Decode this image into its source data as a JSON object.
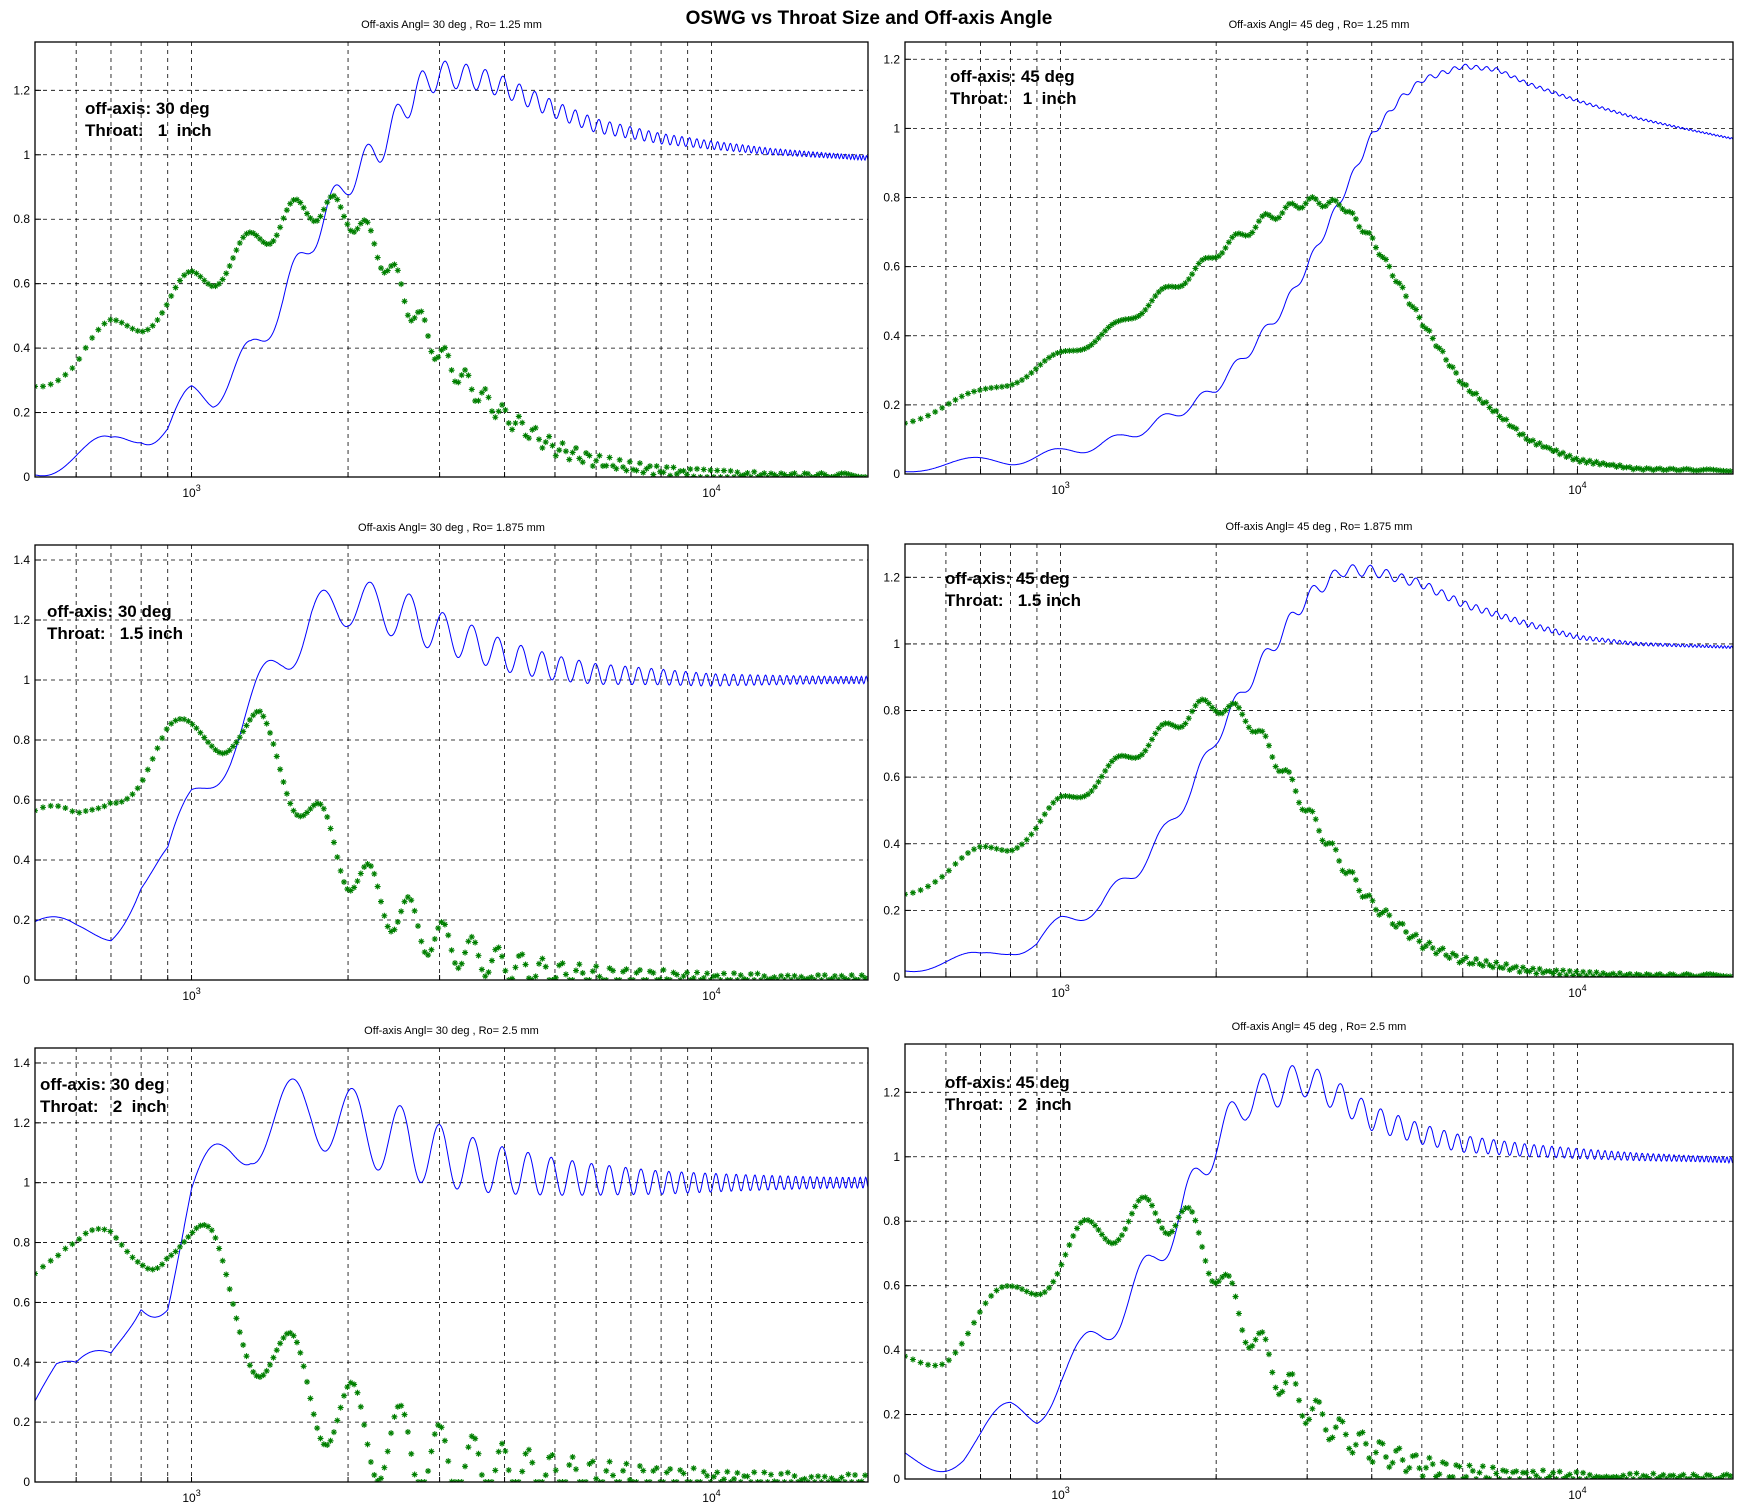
{
  "figure": {
    "title": "OSWG vs Throat Size and Off-axis Angle"
  },
  "colors": {
    "blue_series": "#0000ff",
    "green_series": "#007f00",
    "grid": "#000000"
  },
  "chart_data": [
    {
      "type": "line",
      "x_scale": "log",
      "grid": true,
      "title": "Off-axis Angl= 30 deg   , Ro= 1.25 mm",
      "annotation": [
        "off-axis: 30 deg",
        "Throat:   1  inch"
      ],
      "xlim": [
        500,
        20000
      ],
      "ylim": [
        0,
        1.35
      ],
      "yticks": [
        "0",
        "0.2",
        "0.4",
        "0.6",
        "0.8",
        "1",
        "1.2"
      ],
      "yticks_values": [
        0,
        0.2,
        0.4,
        0.6,
        0.8,
        1,
        1.2
      ],
      "xticks": [
        "10^3",
        "10^4"
      ],
      "series": [
        {
          "line_style": "solid",
          "marker": "none",
          "x": [
            500,
            700,
            800,
            900,
            1000,
            1100,
            1300,
            1500,
            1700,
            2000,
            2300,
            2700,
            3000,
            3500,
            4000,
            5000,
            6000,
            8000,
            10000,
            13000,
            16000,
            20000
          ],
          "values": [
            0.05,
            0.08,
            0.15,
            0.15,
            0.24,
            0.26,
            0.38,
            0.55,
            0.74,
            0.92,
            1.02,
            1.2,
            1.25,
            1.24,
            1.21,
            1.14,
            1.09,
            1.05,
            1.03,
            1.01,
            1.0,
            0.99
          ],
          "ripple_amplitude": 0.05,
          "ripple_period_hz": 300
        },
        {
          "line_style": "none",
          "marker": "*",
          "x": [
            500,
            600,
            700,
            800,
            900,
            1000,
            1100,
            1300,
            1500,
            1700,
            2000,
            2300,
            2700,
            3000,
            3500,
            4000,
            5000,
            6000,
            7000,
            8000,
            10000,
            13000,
            20000
          ],
          "values": [
            0.32,
            0.35,
            0.45,
            0.49,
            0.54,
            0.6,
            0.63,
            0.72,
            0.8,
            0.84,
            0.82,
            0.7,
            0.5,
            0.38,
            0.27,
            0.19,
            0.09,
            0.05,
            0.03,
            0.02,
            0.01,
            0.005,
            0.005
          ],
          "ripple_amplitude": 0.045,
          "ripple_period_hz": 300
        }
      ]
    },
    {
      "type": "line",
      "x_scale": "log",
      "grid": true,
      "title": "Off-axis Angl= 45 deg   , Ro= 1.25 mm",
      "annotation": [
        "off-axis: 45 deg",
        "Throat:   1  inch"
      ],
      "xlim": [
        500,
        20000
      ],
      "ylim": [
        0,
        1.25
      ],
      "yticks": [
        "0",
        "0.2",
        "0.4",
        "0.6",
        "0.8",
        "1",
        "1.2"
      ],
      "yticks_values": [
        0,
        0.2,
        0.4,
        0.6,
        0.8,
        1,
        1.2
      ],
      "xticks": [
        "10^3",
        "10^4"
      ],
      "series": [
        {
          "line_style": "solid",
          "marker": "none",
          "x": [
            500,
            800,
            1000,
            1300,
            1500,
            1800,
            2000,
            2300,
            2700,
            3000,
            3500,
            4000,
            4500,
            5000,
            6000,
            7000,
            8000,
            10000,
            13000,
            16000,
            20000
          ],
          "values": [
            0.02,
            0.04,
            0.06,
            0.1,
            0.14,
            0.2,
            0.25,
            0.35,
            0.48,
            0.6,
            0.8,
            0.98,
            1.08,
            1.14,
            1.18,
            1.17,
            1.13,
            1.08,
            1.03,
            1.0,
            0.97
          ],
          "ripple_amplitude": 0.015,
          "ripple_period_hz": 300
        },
        {
          "line_style": "none",
          "marker": "*",
          "x": [
            500,
            700,
            800,
            1000,
            1300,
            1500,
            1800,
            2000,
            2500,
            3000,
            3500,
            4000,
            5000,
            6000,
            8000,
            10000,
            13000,
            20000
          ],
          "values": [
            0.16,
            0.23,
            0.27,
            0.34,
            0.43,
            0.5,
            0.58,
            0.64,
            0.74,
            0.79,
            0.78,
            0.68,
            0.44,
            0.26,
            0.1,
            0.04,
            0.015,
            0.01
          ],
          "ripple_amplitude": 0.015,
          "ripple_period_hz": 300
        }
      ]
    },
    {
      "type": "line",
      "x_scale": "log",
      "grid": true,
      "title": "Off-axis Angl= 30 deg   , Ro= 1.875 mm",
      "annotation": [
        "off-axis: 30 deg",
        "Throat:   1.5 inch"
      ],
      "xlim": [
        500,
        20000
      ],
      "ylim": [
        0,
        1.45
      ],
      "yticks": [
        "0",
        "0.2",
        "0.4",
        "0.6",
        "0.8",
        "1",
        "1.2",
        "1.4"
      ],
      "yticks_values": [
        0,
        0.2,
        0.4,
        0.6,
        0.8,
        1,
        1.2,
        1.4
      ],
      "xticks": [
        "10^3",
        "10^4"
      ],
      "series": [
        {
          "line_style": "solid",
          "marker": "none",
          "x": [
            500,
            600,
            700,
            800,
            900,
            1000,
            1150,
            1300,
            1500,
            1700,
            2000,
            2300,
            2700,
            3000,
            3500,
            4000,
            5000,
            6000,
            8000,
            10000,
            13000,
            20000
          ],
          "values": [
            0.12,
            0.15,
            0.2,
            0.35,
            0.38,
            0.58,
            0.75,
            0.9,
            1.08,
            1.2,
            1.26,
            1.24,
            1.2,
            1.16,
            1.12,
            1.08,
            1.04,
            1.02,
            1.01,
            1.0,
            1.0,
            1.0
          ],
          "ripple_amplitude": 0.08,
          "ripple_period_hz": 420
        },
        {
          "line_style": "none",
          "marker": "*",
          "x": [
            500,
            600,
            700,
            800,
            900,
            1000,
            1100,
            1200,
            1350,
            1500,
            1700,
            2000,
            2300,
            2700,
            3000,
            3500,
            4000,
            5000,
            6000,
            8000,
            10000,
            20000
          ],
          "values": [
            0.49,
            0.52,
            0.66,
            0.7,
            0.78,
            0.8,
            0.83,
            0.84,
            0.82,
            0.7,
            0.55,
            0.38,
            0.27,
            0.18,
            0.13,
            0.08,
            0.05,
            0.02,
            0.012,
            0.008,
            0.005,
            0.005
          ],
          "ripple_amplitude": 0.08,
          "ripple_period_hz": 420
        }
      ]
    },
    {
      "type": "line",
      "x_scale": "log",
      "grid": true,
      "title": "Off-axis Angl= 45 deg   , Ro= 1.875 mm",
      "annotation": [
        "off-axis: 45 deg",
        "Throat:   1.5 inch"
      ],
      "xlim": [
        500,
        20000
      ],
      "ylim": [
        0,
        1.3
      ],
      "yticks": [
        "0",
        "0.2",
        "0.4",
        "0.6",
        "0.8",
        "1",
        "1.2"
      ],
      "yticks_values": [
        0,
        0.2,
        0.4,
        0.6,
        0.8,
        1,
        1.2
      ],
      "xticks": [
        "10^3",
        "10^4"
      ],
      "series": [
        {
          "line_style": "solid",
          "marker": "none",
          "x": [
            500,
            700,
            800,
            900,
            1000,
            1200,
            1400,
            1600,
            1800,
            2000,
            2300,
            2700,
            3000,
            3500,
            4000,
            5000,
            6000,
            8000,
            10000,
            13000,
            20000
          ],
          "values": [
            0.04,
            0.05,
            0.09,
            0.1,
            0.16,
            0.22,
            0.32,
            0.44,
            0.57,
            0.72,
            0.88,
            1.04,
            1.14,
            1.22,
            1.22,
            1.18,
            1.12,
            1.06,
            1.02,
            1.0,
            0.99
          ],
          "ripple_amplitude": 0.025,
          "ripple_period_hz": 300
        },
        {
          "line_style": "none",
          "marker": "*",
          "x": [
            500,
            600,
            700,
            800,
            900,
            1000,
            1200,
            1400,
            1600,
            1800,
            2000,
            2300,
            2700,
            3000,
            3500,
            4000,
            5000,
            6000,
            8000,
            10000,
            13000,
            20000
          ],
          "values": [
            0.27,
            0.31,
            0.37,
            0.4,
            0.45,
            0.52,
            0.6,
            0.68,
            0.74,
            0.8,
            0.82,
            0.78,
            0.62,
            0.5,
            0.34,
            0.22,
            0.1,
            0.05,
            0.02,
            0.01,
            0.005,
            0.005
          ],
          "ripple_amplitude": 0.025,
          "ripple_period_hz": 300
        }
      ]
    },
    {
      "type": "line",
      "x_scale": "log",
      "grid": true,
      "title": "Off-axis Angl= 30 deg   , Ro= 2.5 mm",
      "annotation": [
        "off-axis: 30 deg",
        "Throat:   2  inch"
      ],
      "xlim": [
        500,
        20000
      ],
      "ylim": [
        0,
        1.45
      ],
      "yticks": [
        "0",
        "0.2",
        "0.4",
        "0.6",
        "0.8",
        "1",
        "1.2",
        "1.4"
      ],
      "yticks_values": [
        0,
        0.2,
        0.4,
        0.6,
        0.8,
        1,
        1.2,
        1.4
      ],
      "xticks": [
        "10^3",
        "10^4"
      ],
      "series": [
        {
          "line_style": "solid",
          "marker": "none",
          "x": [
            500,
            550,
            600,
            700,
            800,
            900,
            1000,
            1150,
            1300,
            1500,
            1700,
            2000,
            2300,
            2700,
            3000,
            3500,
            4000,
            5000,
            6000,
            8000,
            10000,
            20000
          ],
          "values": [
            0.24,
            0.3,
            0.28,
            0.4,
            0.68,
            0.66,
            0.92,
            1.05,
            1.18,
            1.22,
            1.24,
            1.2,
            1.16,
            1.12,
            1.09,
            1.06,
            1.04,
            1.02,
            1.01,
            1.0,
            1.0,
            1.0
          ],
          "ripple_amplitude": 0.12,
          "ripple_period_hz": 480
        },
        {
          "line_style": "none",
          "marker": "*",
          "x": [
            500,
            550,
            600,
            700,
            800,
            900,
            1000,
            1100,
            1200,
            1350,
            1500,
            1700,
            2000,
            2300,
            2700,
            3000,
            3500,
            4000,
            5000,
            6000,
            8000,
            10000,
            20000
          ],
          "values": [
            0.66,
            0.64,
            0.66,
            0.8,
            0.85,
            0.85,
            0.76,
            0.7,
            0.6,
            0.48,
            0.38,
            0.3,
            0.2,
            0.14,
            0.1,
            0.07,
            0.05,
            0.035,
            0.02,
            0.012,
            0.008,
            0.006,
            0.006
          ],
          "ripple_amplitude": 0.14,
          "ripple_period_hz": 480
        }
      ]
    },
    {
      "type": "line",
      "x_scale": "log",
      "grid": true,
      "title": "Off-axis Angl= 45 deg   , Ro= 2.5 mm",
      "annotation": [
        "off-axis: 45 deg",
        "Throat:   2  inch"
      ],
      "xlim": [
        500,
        20000
      ],
      "ylim": [
        0,
        1.35
      ],
      "yticks": [
        "0",
        "0.2",
        "0.4",
        "0.6",
        "0.8",
        "1",
        "1.2"
      ],
      "yticks_values": [
        0,
        0.2,
        0.4,
        0.6,
        0.8,
        1,
        1.2
      ],
      "xticks": [
        "10^3",
        "10^4"
      ],
      "series": [
        {
          "line_style": "solid",
          "marker": "none",
          "x": [
            500,
            650,
            700,
            800,
            900,
            1000,
            1100,
            1300,
            1500,
            1700,
            2000,
            2300,
            2700,
            3000,
            3500,
            4000,
            5000,
            6000,
            8000,
            10000,
            13000,
            20000
          ],
          "values": [
            0.07,
            0.09,
            0.12,
            0.19,
            0.22,
            0.32,
            0.38,
            0.52,
            0.66,
            0.82,
            1.05,
            1.18,
            1.22,
            1.24,
            1.18,
            1.12,
            1.07,
            1.04,
            1.02,
            1.01,
            1.0,
            0.99
          ],
          "ripple_amplitude": 0.06,
          "ripple_period_hz": 340
        },
        {
          "line_style": "none",
          "marker": "*",
          "x": [
            500,
            600,
            700,
            800,
            900,
            1000,
            1100,
            1300,
            1500,
            1700,
            1900,
            2100,
            2400,
            2700,
            3000,
            3500,
            4000,
            5000,
            6000,
            8000,
            10000,
            20000
          ],
          "values": [
            0.37,
            0.42,
            0.5,
            0.55,
            0.62,
            0.68,
            0.74,
            0.8,
            0.82,
            0.82,
            0.72,
            0.58,
            0.42,
            0.3,
            0.22,
            0.14,
            0.09,
            0.04,
            0.02,
            0.01,
            0.006,
            0.005
          ],
          "ripple_amplitude": 0.06,
          "ripple_period_hz": 340
        }
      ]
    }
  ]
}
